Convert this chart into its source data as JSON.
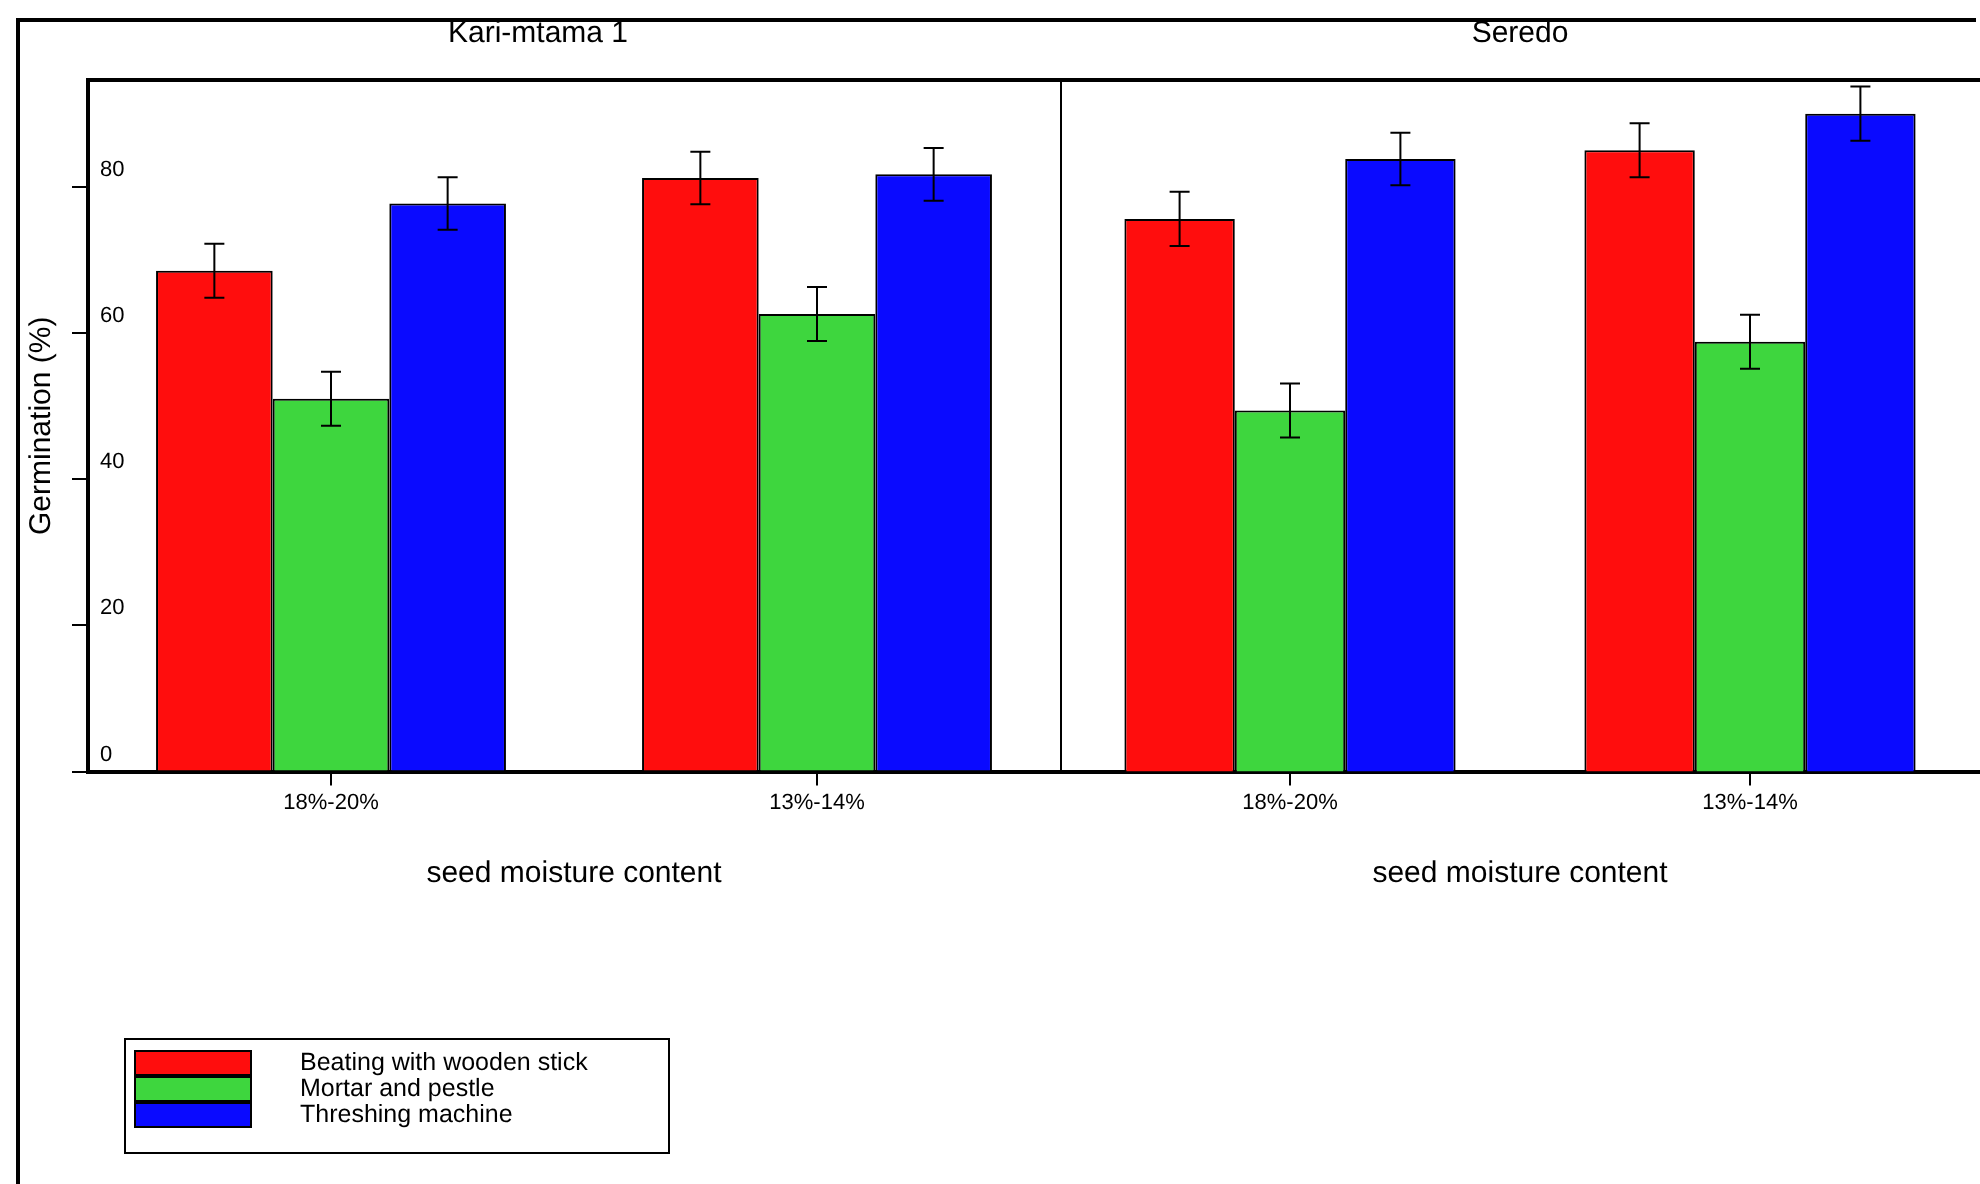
{
  "chart_data": [
    {
      "type": "bar",
      "title": "Kari-mtama 1",
      "xlabel": "seed moisture content",
      "ylabel": "Germination (%)",
      "categories": [
        "18%-20%",
        "13%-14%"
      ],
      "series": [
        {
          "name": "Beating with wooden stick",
          "color": "#ff0d0d",
          "values": [
            68.5,
            81.2
          ],
          "errors": [
            3.7,
            3.6
          ]
        },
        {
          "name": "Mortar and pestle",
          "color": "#3ed63e",
          "values": [
            51.0,
            62.6
          ],
          "errors": [
            3.7,
            3.7
          ]
        },
        {
          "name": "Threshing machine",
          "color": "#0a0aff",
          "values": [
            77.7,
            81.7
          ],
          "errors": [
            3.6,
            3.6
          ]
        }
      ],
      "ylim": [
        0,
        94.6
      ],
      "yticks": [
        0,
        20,
        40,
        60,
        80
      ],
      "grid": false,
      "legend": "bottom left"
    },
    {
      "type": "bar",
      "title": "Seredo",
      "xlabel": "seed moisture content",
      "categories": [
        "18%-20%",
        "13%-14%"
      ],
      "series": [
        {
          "color": "#ff0d0d",
          "values": [
            75.6,
            85.0
          ],
          "errors": [
            3.7,
            3.7
          ]
        },
        {
          "color": "#3ed63e",
          "values": [
            49.4,
            58.8
          ],
          "errors": [
            3.7,
            3.7
          ]
        },
        {
          "color": "#0a0aff",
          "values": [
            83.8,
            90.0
          ],
          "errors": [
            3.6,
            3.7
          ]
        }
      ],
      "ylim": [
        0,
        94.6
      ],
      "yticks": [
        0,
        20,
        40,
        60,
        80
      ],
      "grid": false,
      "tick_labels": "x"
    }
  ]
}
